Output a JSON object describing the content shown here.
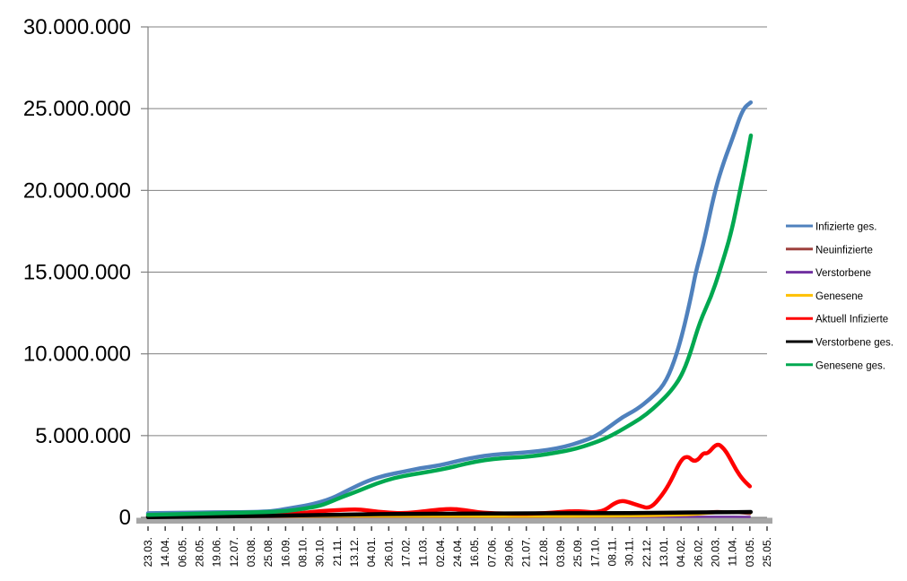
{
  "chart_data": {
    "type": "line",
    "title": "",
    "value_unit": "millions",
    "grid": true,
    "legend_position": "right",
    "y_axis": {
      "min": 0,
      "max": 30000000,
      "step": 5000000,
      "tick_labels": [
        "0",
        "5.000.000",
        "10.000.000",
        "15.000.000",
        "20.000.000",
        "25.000.000",
        "30.000.000"
      ]
    },
    "x_axis": {
      "tick_labels": [
        "23.03.",
        "14.04.",
        "06.05.",
        "28.05.",
        "19.06.",
        "12.07.",
        "03.08.",
        "25.08.",
        "16.09.",
        "08.10.",
        "30.10.",
        "21.11.",
        "13.12.",
        "04.01.",
        "26.01.",
        "17.02.",
        "11.03.",
        "02.04.",
        "24.04.",
        "16.05.",
        "07.06.",
        "29.06.",
        "21.07.",
        "12.08.",
        "03.09.",
        "25.09.",
        "17.10.",
        "08.11.",
        "30.11.",
        "22.12.",
        "13.01.",
        "04.02.",
        "26.02.",
        "20.03.",
        "11.04.",
        "03.05.",
        "25.05."
      ]
    },
    "series": [
      {
        "key": "infizierte_ges",
        "name": "Infizierte ges.",
        "color": "#4F81BD",
        "width": 4.5,
        "points": [
          [
            0,
            0.25
          ],
          [
            2,
            0.28
          ],
          [
            4,
            0.31
          ],
          [
            6,
            0.33
          ],
          [
            7,
            0.36
          ],
          [
            7.6,
            0.44
          ],
          [
            8.6,
            0.62
          ],
          [
            9.6,
            0.8
          ],
          [
            10.7,
            1.15
          ],
          [
            11.7,
            1.7
          ],
          [
            12.8,
            2.25
          ],
          [
            13.8,
            2.58
          ],
          [
            14.9,
            2.8
          ],
          [
            15.9,
            3.02
          ],
          [
            17,
            3.18
          ],
          [
            18,
            3.45
          ],
          [
            19,
            3.67
          ],
          [
            20.1,
            3.84
          ],
          [
            21.1,
            3.9
          ],
          [
            22.2,
            4.0
          ],
          [
            23.2,
            4.11
          ],
          [
            24.3,
            4.33
          ],
          [
            25.3,
            4.66
          ],
          [
            26.1,
            4.99
          ],
          [
            26.9,
            5.59
          ],
          [
            27.6,
            6.14
          ],
          [
            28.4,
            6.58
          ],
          [
            29.2,
            7.24
          ],
          [
            30,
            8.06
          ],
          [
            30.6,
            9.5
          ],
          [
            31.1,
            11.3
          ],
          [
            31.6,
            13.6
          ],
          [
            31.85,
            15.0
          ],
          [
            32.3,
            16.7
          ],
          [
            32.97,
            20.0
          ],
          [
            33.5,
            21.8
          ],
          [
            34.0,
            23.2
          ],
          [
            34.59,
            25.0
          ],
          [
            35.05,
            25.38
          ]
        ]
      },
      {
        "key": "neuinfizierte",
        "name": "Neuinfizierte",
        "color": "#9E413E",
        "width": 3,
        "points": [
          [
            0,
            0.03
          ],
          [
            5,
            0.04
          ],
          [
            10,
            0.06
          ],
          [
            14,
            0.05
          ],
          [
            18,
            0.05
          ],
          [
            22,
            0.04
          ],
          [
            25,
            0.06
          ],
          [
            27,
            0.1
          ],
          [
            28,
            0.1
          ],
          [
            28.6,
            0.09
          ],
          [
            29.5,
            0.16
          ],
          [
            30.4,
            0.28
          ],
          [
            31,
            0.33
          ],
          [
            31.8,
            0.3
          ],
          [
            32.5,
            0.33
          ],
          [
            33.1,
            0.38
          ],
          [
            33.7,
            0.33
          ],
          [
            34.3,
            0.28
          ],
          [
            35,
            0.22
          ]
        ]
      },
      {
        "key": "verstorbene",
        "name": "Verstorbene",
        "color": "#7030A0",
        "width": 2.5,
        "points": [
          [
            0,
            0.01
          ],
          [
            10,
            0.02
          ],
          [
            20,
            0.02
          ],
          [
            30,
            0.03
          ],
          [
            33,
            0.04
          ],
          [
            35,
            0.03
          ]
        ]
      },
      {
        "key": "genesene",
        "name": "Genesene",
        "color": "#FFC000",
        "width": 3,
        "points": [
          [
            0,
            0.02
          ],
          [
            5,
            0.04
          ],
          [
            10,
            0.06
          ],
          [
            14,
            0.06
          ],
          [
            18,
            0.05
          ],
          [
            22,
            0.05
          ],
          [
            26,
            0.06
          ],
          [
            28,
            0.08
          ],
          [
            29.5,
            0.1
          ],
          [
            31,
            0.14
          ],
          [
            31.8,
            0.18
          ],
          [
            32.5,
            0.24
          ],
          [
            33.3,
            0.3
          ],
          [
            34,
            0.32
          ],
          [
            34.5,
            0.33
          ],
          [
            35.05,
            0.28
          ]
        ]
      },
      {
        "key": "aktuell_infizierte",
        "name": "Aktuell Infizierte",
        "color": "#FF0000",
        "width": 4.5,
        "points": [
          [
            0,
            0.07
          ],
          [
            1,
            0.1
          ],
          [
            2,
            0.12
          ],
          [
            3,
            0.13
          ],
          [
            4,
            0.13
          ],
          [
            5,
            0.12
          ],
          [
            6,
            0.12
          ],
          [
            7,
            0.13
          ],
          [
            8,
            0.17
          ],
          [
            9.1,
            0.28
          ],
          [
            10,
            0.38
          ],
          [
            11,
            0.44
          ],
          [
            11.7,
            0.48
          ],
          [
            12.3,
            0.49
          ],
          [
            13.3,
            0.35
          ],
          [
            14.3,
            0.26
          ],
          [
            15.1,
            0.26
          ],
          [
            15.9,
            0.35
          ],
          [
            17,
            0.48
          ],
          [
            17.7,
            0.52
          ],
          [
            18.4,
            0.45
          ],
          [
            19.1,
            0.32
          ],
          [
            19.9,
            0.26
          ],
          [
            21,
            0.22
          ],
          [
            22,
            0.22
          ],
          [
            23,
            0.25
          ],
          [
            24,
            0.33
          ],
          [
            24.7,
            0.38
          ],
          [
            25.4,
            0.35
          ],
          [
            26,
            0.3
          ],
          [
            26.6,
            0.45
          ],
          [
            27.1,
            0.85
          ],
          [
            27.5,
            1.02
          ],
          [
            27.9,
            0.95
          ],
          [
            28.6,
            0.7
          ],
          [
            29.2,
            0.52
          ],
          [
            29.9,
            1.35
          ],
          [
            30.4,
            2.2
          ],
          [
            31,
            3.55
          ],
          [
            31.4,
            3.75
          ],
          [
            31.7,
            3.42
          ],
          [
            32,
            3.52
          ],
          [
            32.3,
            3.95
          ],
          [
            32.55,
            3.88
          ],
          [
            33.1,
            4.55
          ],
          [
            33.5,
            4.2
          ],
          [
            33.8,
            3.7
          ],
          [
            34.2,
            2.9
          ],
          [
            34.6,
            2.3
          ],
          [
            35,
            1.9
          ]
        ]
      },
      {
        "key": "verstorbene_ges",
        "name": "Verstorbene ges.",
        "color": "#000000",
        "width": 4.5,
        "points": [
          [
            0,
            0.01
          ],
          [
            3,
            0.04
          ],
          [
            6,
            0.08
          ],
          [
            9,
            0.13
          ],
          [
            12,
            0.18
          ],
          [
            15,
            0.21
          ],
          [
            18,
            0.23
          ],
          [
            21,
            0.24
          ],
          [
            24,
            0.25
          ],
          [
            27,
            0.26
          ],
          [
            29,
            0.27
          ],
          [
            31,
            0.29
          ],
          [
            33,
            0.31
          ],
          [
            35.05,
            0.33
          ]
        ]
      },
      {
        "key": "genesene_ges",
        "name": "Genesene ges.",
        "color": "#00A850",
        "width": 4.5,
        "points": [
          [
            0,
            0.15
          ],
          [
            2,
            0.2
          ],
          [
            4,
            0.25
          ],
          [
            6,
            0.3
          ],
          [
            7.6,
            0.35
          ],
          [
            8.6,
            0.45
          ],
          [
            9.6,
            0.62
          ],
          [
            10.2,
            0.77
          ],
          [
            11.2,
            1.21
          ],
          [
            12.3,
            1.64
          ],
          [
            13.3,
            2.08
          ],
          [
            14.3,
            2.41
          ],
          [
            15.4,
            2.63
          ],
          [
            16.4,
            2.8
          ],
          [
            17.5,
            3.02
          ],
          [
            18.5,
            3.29
          ],
          [
            19.6,
            3.51
          ],
          [
            20.6,
            3.62
          ],
          [
            21.6,
            3.67
          ],
          [
            22.7,
            3.78
          ],
          [
            23.7,
            3.95
          ],
          [
            24.8,
            4.17
          ],
          [
            25.8,
            4.5
          ],
          [
            26.6,
            4.82
          ],
          [
            27.4,
            5.26
          ],
          [
            28.2,
            5.76
          ],
          [
            29,
            6.3
          ],
          [
            29.7,
            6.96
          ],
          [
            30.4,
            7.7
          ],
          [
            31,
            8.6
          ],
          [
            31.5,
            9.9
          ],
          [
            32.1,
            12.0
          ],
          [
            32.75,
            13.5
          ],
          [
            33.23,
            15.0
          ],
          [
            33.9,
            17.3
          ],
          [
            34.43,
            20.0
          ],
          [
            34.8,
            21.9
          ],
          [
            35.06,
            23.36
          ]
        ]
      }
    ],
    "colors": {
      "gridline": "#808080",
      "axis_line": "#808080",
      "axis_bar": "#A6A6A6",
      "tick_mark": "#404040",
      "label_text": "#000000"
    }
  }
}
